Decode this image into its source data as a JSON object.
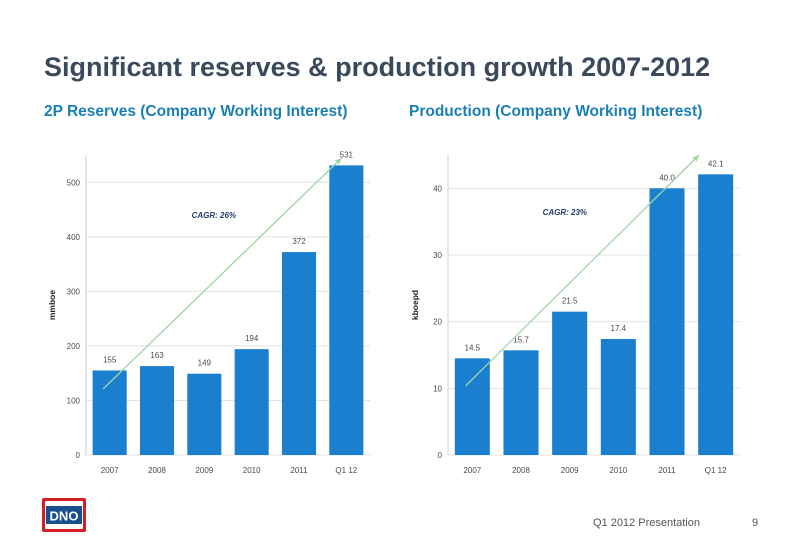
{
  "page": {
    "title": "Significant reserves & production growth 2007-2012",
    "footer": "Q1 2012 Presentation",
    "page_number": "9",
    "logo_text": "DNO"
  },
  "colors": {
    "bar": "#1a7fcf",
    "trend": "#9fd4a5",
    "title": "#3a4a5c",
    "subtitle": "#1a7fb3",
    "logo_red": "#d41f26"
  },
  "chart_data": [
    {
      "type": "bar",
      "heading": "2P Reserves (Company Working Interest)",
      "ylabel": "mmboe",
      "categories": [
        "2007",
        "2008",
        "2009",
        "2010",
        "2011",
        "Q1 12"
      ],
      "values": [
        155,
        163,
        149,
        194,
        372,
        531
      ],
      "value_labels": [
        "155",
        "163",
        "149",
        "194",
        "372",
        "531"
      ],
      "ylim": [
        0,
        550
      ],
      "yticks": [
        0,
        100,
        200,
        300,
        400,
        500
      ],
      "grid": true,
      "annotation": "CAGR: 26%"
    },
    {
      "type": "bar",
      "heading": "Production (Company Working Interest)",
      "ylabel": "kboepd",
      "categories": [
        "2007",
        "2008",
        "2009",
        "2010",
        "2011",
        "Q1 12"
      ],
      "values": [
        14.5,
        15.7,
        21.5,
        17.4,
        40.0,
        42.1
      ],
      "value_labels": [
        "14.5",
        "15.7",
        "21.5",
        "17.4",
        "40.0",
        "42.1"
      ],
      "ylim": [
        0,
        45
      ],
      "yticks": [
        0,
        10,
        20,
        30,
        40
      ],
      "grid": true,
      "annotation": "CAGR: 23%"
    }
  ]
}
